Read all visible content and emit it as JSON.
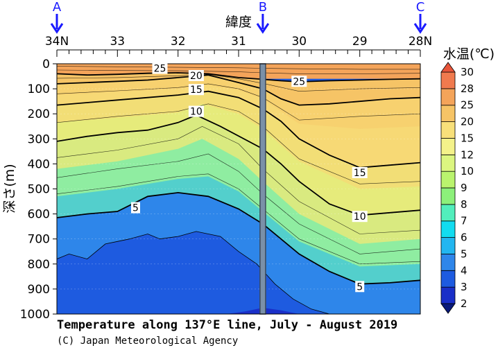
{
  "chart_data": {
    "type": "heatmap",
    "title": "Temperature along 137°E line, July - August 2019",
    "credit": "(C) Japan Meteorological Agency",
    "xlabel": "緯度",
    "ylabel": "深さ(m)",
    "x_axis": {
      "ticks": [
        "34N",
        "33",
        "32",
        "31",
        "30",
        "29",
        "28N"
      ],
      "values": [
        34,
        33,
        32,
        31,
        30,
        29,
        28
      ],
      "range": [
        34,
        28
      ]
    },
    "y_axis": {
      "ticks": [
        "0",
        "100",
        "200",
        "300",
        "400",
        "500",
        "600",
        "700",
        "800",
        "900",
        "1000"
      ],
      "values": [
        0,
        100,
        200,
        300,
        400,
        500,
        600,
        700,
        800,
        900,
        1000
      ],
      "range": [
        0,
        1000
      ],
      "inverted": true
    },
    "markers": [
      {
        "label": "A",
        "lat": 34
      },
      {
        "label": "B",
        "lat": 30.6
      },
      {
        "label": "C",
        "lat": 28
      }
    ],
    "section_break_lat": 30.6,
    "colorbar": {
      "title": "水温(℃)",
      "levels": [
        "2",
        "3",
        "4",
        "5",
        "6",
        "7",
        "8",
        "9",
        "10",
        "12",
        "15",
        "20",
        "25",
        "28",
        "30"
      ],
      "colors": [
        "#0a1a7a",
        "#1a2fc8",
        "#1e5be0",
        "#2e86ea",
        "#22b6f0",
        "#12dcf0",
        "#52eebc",
        "#8cf07a",
        "#baf46e",
        "#dcf680",
        "#f4f28a",
        "#f8e07a",
        "#f6c466",
        "#f4a45a",
        "#f07a4e",
        "#e8553a"
      ]
    },
    "contour_labels": [
      {
        "text": "25",
        "lat": 32.3,
        "depth": 18
      },
      {
        "text": "20",
        "lat": 31.7,
        "depth": 47
      },
      {
        "text": "15",
        "lat": 31.7,
        "depth": 103
      },
      {
        "text": "10",
        "lat": 31.7,
        "depth": 190
      },
      {
        "text": "5",
        "lat": 32.7,
        "depth": 575
      },
      {
        "text": "25",
        "lat": 30.0,
        "depth": 70
      },
      {
        "text": "15",
        "lat": 29.0,
        "depth": 435
      },
      {
        "text": "10",
        "lat": 29.0,
        "depth": 610
      },
      {
        "text": "5",
        "lat": 29.0,
        "depth": 890
      }
    ],
    "isotherms": [
      {
        "t": 25,
        "bold": true,
        "pts": [
          [
            34,
            40
          ],
          [
            33.5,
            45
          ],
          [
            33,
            42
          ],
          [
            32.5,
            38
          ],
          [
            32,
            36
          ],
          [
            31.5,
            40
          ],
          [
            31,
            55
          ],
          [
            30.6,
            62
          ],
          [
            30.3,
            68
          ],
          [
            30,
            72
          ],
          [
            29.5,
            68
          ],
          [
            29,
            65
          ],
          [
            28.5,
            62
          ],
          [
            28,
            60
          ]
        ]
      },
      {
        "t": 20,
        "bold": true,
        "pts": [
          [
            34,
            80
          ],
          [
            33.5,
            75
          ],
          [
            33,
            70
          ],
          [
            32.5,
            65
          ],
          [
            32,
            55
          ],
          [
            31.5,
            45
          ],
          [
            31,
            75
          ],
          [
            30.6,
            100
          ],
          [
            30.3,
            140
          ],
          [
            30,
            165
          ],
          [
            29.5,
            160
          ],
          [
            29,
            150
          ],
          [
            28.5,
            140
          ],
          [
            28,
            135
          ]
        ]
      },
      {
        "t": 15,
        "bold": true,
        "pts": [
          [
            34,
            165
          ],
          [
            33.5,
            155
          ],
          [
            33,
            145
          ],
          [
            32.5,
            135
          ],
          [
            32,
            125
          ],
          [
            31.5,
            110
          ],
          [
            31,
            135
          ],
          [
            30.6,
            180
          ],
          [
            30.3,
            230
          ],
          [
            30,
            300
          ],
          [
            29.5,
            365
          ],
          [
            29,
            415
          ],
          [
            28.5,
            405
          ],
          [
            28,
            395
          ]
        ]
      },
      {
        "t": 10,
        "bold": true,
        "pts": [
          [
            34,
            310
          ],
          [
            33.5,
            290
          ],
          [
            33,
            275
          ],
          [
            32.5,
            265
          ],
          [
            32,
            235
          ],
          [
            31.7,
            205
          ],
          [
            31.3,
            250
          ],
          [
            30.6,
            340
          ],
          [
            30.3,
            400
          ],
          [
            30,
            470
          ],
          [
            29.5,
            560
          ],
          [
            29,
            605
          ],
          [
            28.5,
            595
          ],
          [
            28,
            585
          ]
        ]
      },
      {
        "t": 5,
        "bold": true,
        "pts": [
          [
            34,
            615
          ],
          [
            33.5,
            600
          ],
          [
            33,
            590
          ],
          [
            32.5,
            530
          ],
          [
            32,
            515
          ],
          [
            31.5,
            530
          ],
          [
            31,
            580
          ],
          [
            30.6,
            640
          ],
          [
            30.3,
            700
          ],
          [
            30,
            760
          ],
          [
            29.5,
            830
          ],
          [
            29,
            880
          ],
          [
            28.5,
            875
          ],
          [
            28,
            865
          ]
        ]
      },
      {
        "t": 4,
        "bold": false,
        "pts": [
          [
            34,
            780
          ],
          [
            33.8,
            760
          ],
          [
            33.5,
            780
          ],
          [
            33.2,
            720
          ],
          [
            33,
            710
          ],
          [
            32.8,
            700
          ],
          [
            32.5,
            680
          ],
          [
            32.3,
            700
          ],
          [
            32,
            690
          ],
          [
            31.7,
            670
          ],
          [
            31.3,
            690
          ],
          [
            31,
            750
          ],
          [
            30.7,
            800
          ],
          [
            30.4,
            880
          ],
          [
            30.1,
            940
          ],
          [
            29.8,
            980
          ],
          [
            29.5,
            1000
          ]
        ]
      }
    ],
    "extra_lines": [
      [
        [
          34,
          10
        ],
        [
          33,
          12
        ],
        [
          32,
          14
        ],
        [
          31,
          16
        ],
        [
          30.6,
          18
        ],
        [
          30,
          20
        ],
        [
          29,
          22
        ],
        [
          28,
          22
        ]
      ],
      [
        [
          34,
          25
        ],
        [
          33,
          27
        ],
        [
          32,
          28
        ],
        [
          31,
          32
        ],
        [
          30.6,
          36
        ],
        [
          30,
          40
        ],
        [
          29,
          40
        ],
        [
          28,
          38
        ]
      ],
      [
        [
          34,
          58
        ],
        [
          33,
          55
        ],
        [
          32,
          48
        ],
        [
          31.5,
          42
        ],
        [
          31,
          60
        ],
        [
          30.6,
          78
        ],
        [
          30,
          110
        ],
        [
          29,
          100
        ],
        [
          28,
          95
        ]
      ],
      [
        [
          34,
          120
        ],
        [
          33,
          108
        ],
        [
          32,
          95
        ],
        [
          31.5,
          80
        ],
        [
          31,
          100
        ],
        [
          30.6,
          135
        ],
        [
          30,
          225
        ],
        [
          29,
          210
        ],
        [
          28,
          200
        ]
      ],
      [
        [
          34,
          235
        ],
        [
          33,
          210
        ],
        [
          32,
          190
        ],
        [
          31.5,
          160
        ],
        [
          31,
          190
        ],
        [
          30.6,
          250
        ],
        [
          30,
          380
        ],
        [
          29,
          480
        ],
        [
          28,
          470
        ]
      ],
      [
        [
          34,
          375
        ],
        [
          33,
          345
        ],
        [
          32,
          300
        ],
        [
          31.6,
          250
        ],
        [
          31,
          320
        ],
        [
          30.6,
          420
        ],
        [
          30,
          550
        ],
        [
          29,
          680
        ],
        [
          28,
          665
        ]
      ],
      [
        [
          34,
          455
        ],
        [
          33,
          420
        ],
        [
          32,
          390
        ],
        [
          31.5,
          360
        ],
        [
          31,
          430
        ],
        [
          30.6,
          520
        ],
        [
          30,
          640
        ],
        [
          29,
          760
        ],
        [
          28,
          740
        ]
      ],
      [
        [
          34,
          520
        ],
        [
          33,
          490
        ],
        [
          32,
          450
        ],
        [
          31.5,
          440
        ],
        [
          31,
          500
        ],
        [
          30.6,
          580
        ],
        [
          30,
          700
        ],
        [
          29,
          800
        ],
        [
          28,
          790
        ]
      ]
    ]
  }
}
